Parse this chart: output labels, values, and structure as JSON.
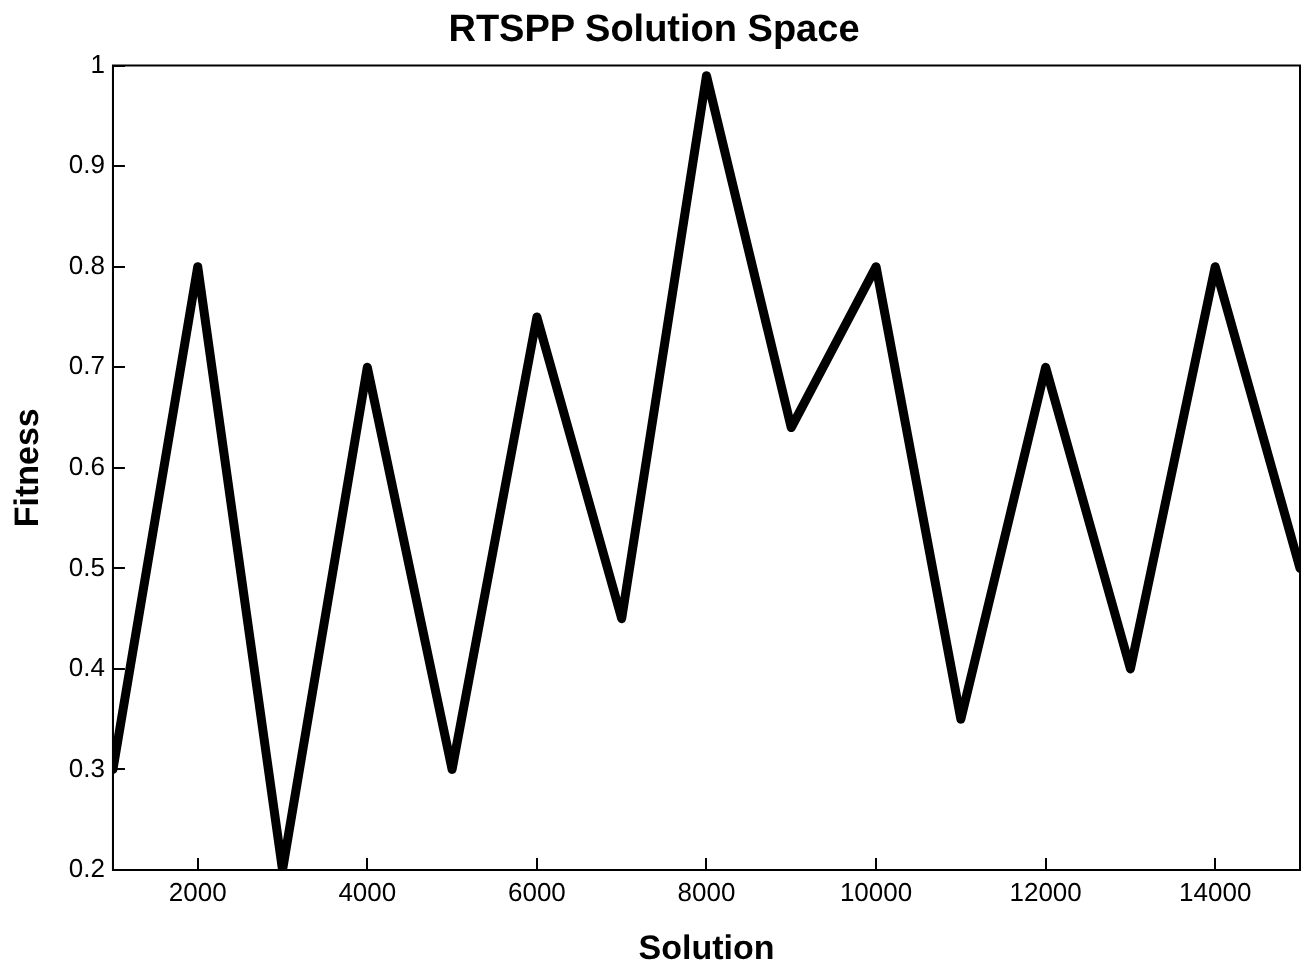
{
  "chart_data": {
    "type": "line",
    "title": "RTSPP Solution Space",
    "xlabel": "Solution",
    "ylabel": "Fitness",
    "x": [
      1000,
      2000,
      3000,
      4000,
      5000,
      6000,
      7000,
      8000,
      9000,
      10000,
      11000,
      12000,
      13000,
      14000,
      15000
    ],
    "series": [
      {
        "color": "#000000",
        "values": [
          0.3,
          0.8,
          0.2,
          0.7,
          0.3,
          0.75,
          0.45,
          0.99,
          0.64,
          0.8,
          0.35,
          0.7,
          0.4,
          0.8,
          0.5
        ]
      }
    ],
    "xlim": [
      1000,
      15000
    ],
    "xticks": [
      2000,
      4000,
      6000,
      8000,
      10000,
      12000,
      14000
    ],
    "ylim": [
      0.2,
      1
    ],
    "yticks": [
      0.2,
      0.3,
      0.4,
      0.5,
      0.6,
      0.7,
      0.8,
      0.9,
      1
    ],
    "grid": false,
    "legend": false,
    "marker": "none",
    "line_style": "solid"
  }
}
